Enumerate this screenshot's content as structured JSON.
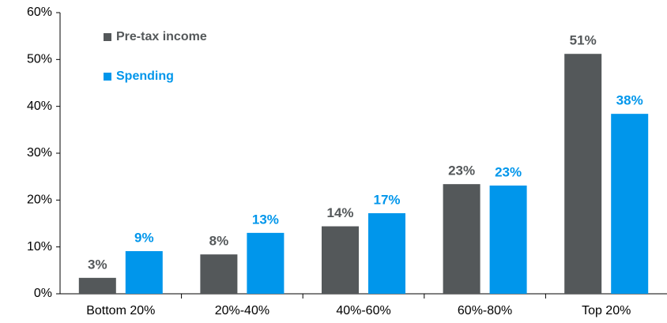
{
  "chart_data": {
    "type": "bar",
    "categories": [
      "Bottom 20%",
      "20%-40%",
      "40%-60%",
      "60%-80%",
      "Top 20%"
    ],
    "series": [
      {
        "name": "Pre-tax income",
        "color": "#54585a",
        "values": [
          3.4,
          8.4,
          14.4,
          23.4,
          51.2
        ],
        "value_labels": [
          "3%",
          "8%",
          "14%",
          "23%",
          "51%"
        ]
      },
      {
        "name": "Spending",
        "color": "#0096eb",
        "values": [
          9.1,
          13.0,
          17.2,
          23.1,
          38.4
        ],
        "value_labels": [
          "9%",
          "13%",
          "17%",
          "23%",
          "38%"
        ]
      }
    ],
    "ylim": [
      0,
      60
    ],
    "yticks": [
      {
        "value": 0,
        "label": "0%"
      },
      {
        "value": 10,
        "label": "10%"
      },
      {
        "value": 20,
        "label": "20%"
      },
      {
        "value": 30,
        "label": "30%"
      },
      {
        "value": 40,
        "label": "40%"
      },
      {
        "value": 50,
        "label": "50%"
      },
      {
        "value": 60,
        "label": "60%"
      }
    ],
    "grid": false,
    "legend": "top-left"
  }
}
